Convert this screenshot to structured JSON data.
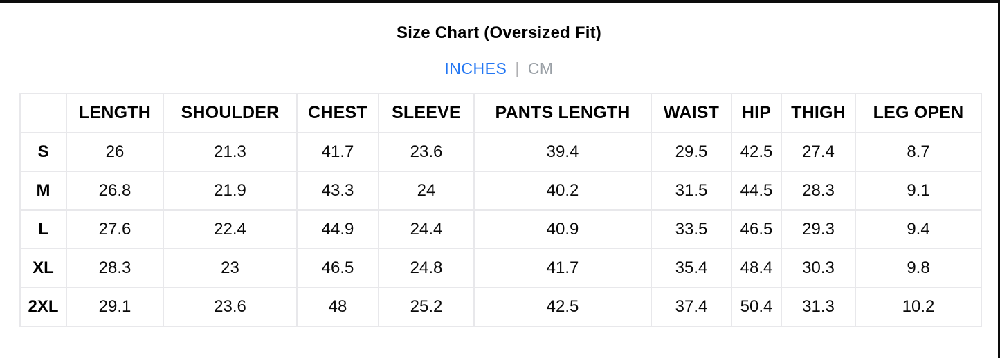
{
  "title": "Size Chart (Oversized Fit)",
  "unit_toggle": {
    "inches_label": "INCHES",
    "divider": "|",
    "cm_label": "CM",
    "active_unit": "INCHES",
    "active_color": "#2276f3",
    "inactive_color": "#9aa0a6"
  },
  "table": {
    "columns": [
      "",
      "LENGTH",
      "SHOULDER",
      "CHEST",
      "SLEEVE",
      "PANTS LENGTH",
      "WAIST",
      "HIP",
      "THIGH",
      "LEG OPEN"
    ],
    "rows": [
      {
        "size": "S",
        "values": [
          "26",
          "21.3",
          "41.7",
          "23.6",
          "39.4",
          "29.5",
          "42.5",
          "27.4",
          "8.7"
        ]
      },
      {
        "size": "M",
        "values": [
          "26.8",
          "21.9",
          "43.3",
          "24",
          "40.2",
          "31.5",
          "44.5",
          "28.3",
          "9.1"
        ]
      },
      {
        "size": "L",
        "values": [
          "27.6",
          "22.4",
          "44.9",
          "24.4",
          "40.9",
          "33.5",
          "46.5",
          "29.3",
          "9.4"
        ]
      },
      {
        "size": "XL",
        "values": [
          "28.3",
          "23",
          "46.5",
          "24.8",
          "41.7",
          "35.4",
          "48.4",
          "30.3",
          "9.8"
        ]
      },
      {
        "size": "2XL",
        "values": [
          "29.1",
          "23.6",
          "48",
          "25.2",
          "42.5",
          "37.4",
          "50.4",
          "31.3",
          "10.2"
        ]
      }
    ]
  }
}
